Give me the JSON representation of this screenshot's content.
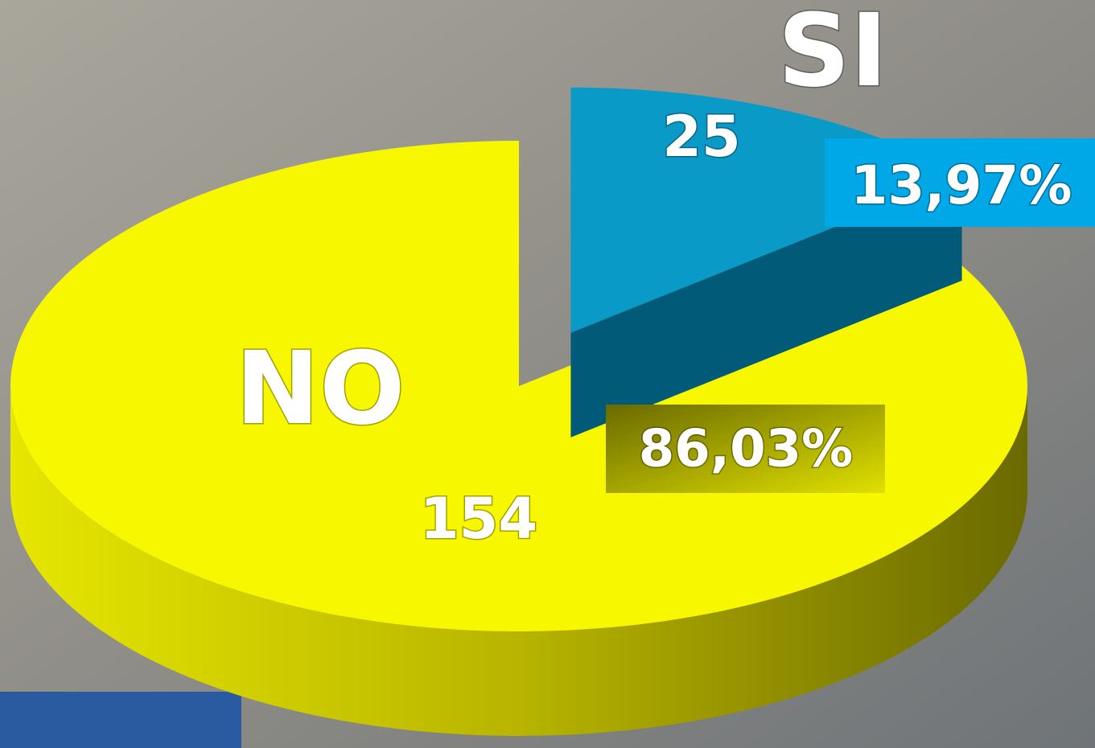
{
  "chart_data": {
    "type": "pie3d",
    "categories": [
      "SI",
      "NO"
    ],
    "values": [
      25,
      154
    ],
    "percent_values": [
      13.97,
      86.03
    ],
    "percent_labels": [
      "13,97%",
      "86,03%"
    ],
    "colors": [
      "#0a9ac8",
      "#f7f700"
    ]
  }
}
